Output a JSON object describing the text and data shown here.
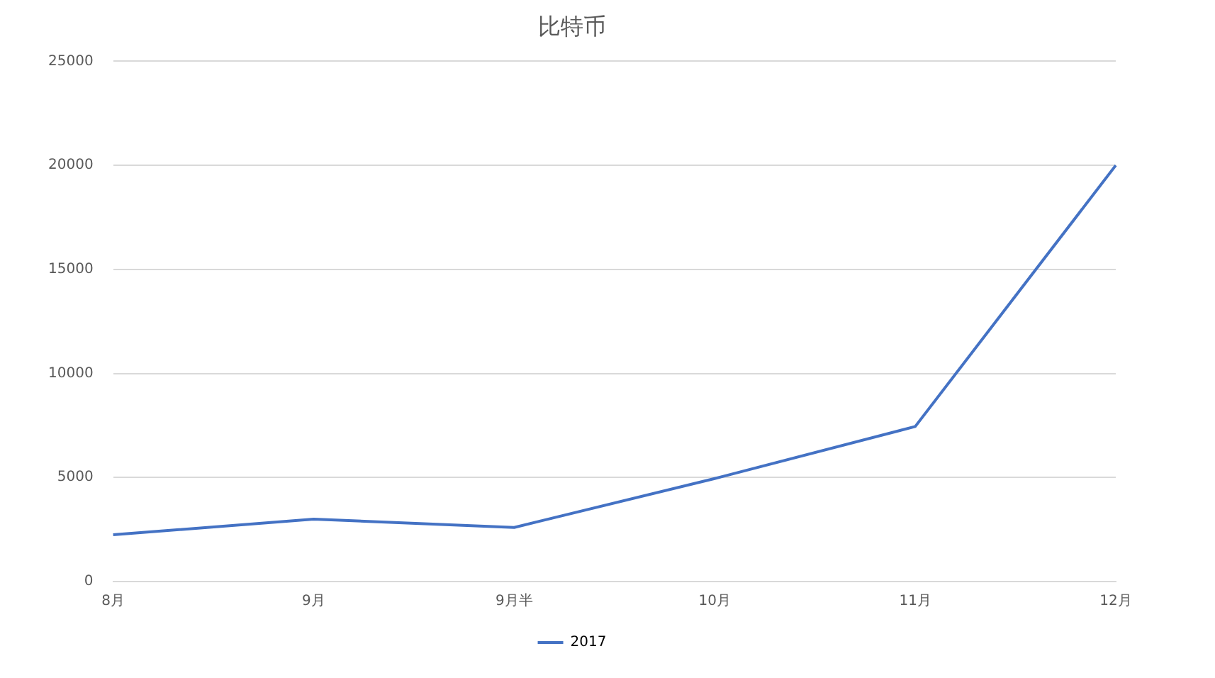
{
  "chart_data": {
    "type": "line",
    "title": "比特币",
    "categories": [
      "8月",
      "9月",
      "9月半",
      "10月",
      "11月",
      "12月"
    ],
    "series": [
      {
        "name": "2017",
        "color": "#4472c4",
        "values": [
          2250,
          3000,
          2600,
          4950,
          7450,
          20000
        ]
      }
    ],
    "ylim": [
      0,
      25000
    ],
    "yticks": [
      0,
      5000,
      10000,
      15000,
      20000,
      25000
    ],
    "grid": "y",
    "legend": "bottom",
    "marker": "none",
    "line_style": "solid"
  }
}
